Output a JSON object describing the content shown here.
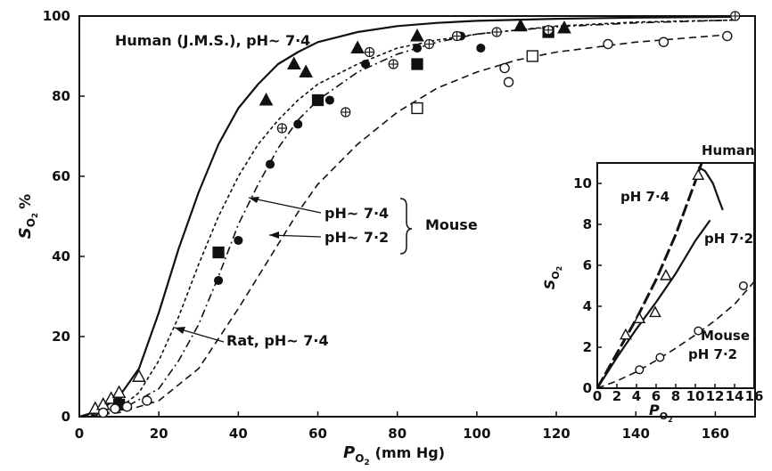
{
  "chart_data": [
    {
      "type": "scatter",
      "title": "",
      "xlabel": "P_O2 (mm Hg)",
      "xlabel_main": "P",
      "xlabel_sub": "O",
      "xlabel_subsub": "2",
      "xlabel_rest": "(mm Hg)",
      "ylabel": "S_O2 %",
      "ylabel_main": "S",
      "ylabel_sub": "O",
      "ylabel_subsub": "2",
      "ylabel_rest": "%",
      "xlim": [
        0,
        170
      ],
      "ylim": [
        0,
        100
      ],
      "xticks": [
        0,
        20,
        40,
        60,
        80,
        100,
        120,
        140,
        160
      ],
      "yticks": [
        0,
        20,
        40,
        60,
        80,
        100
      ],
      "grid": false,
      "annotations": {
        "human": "Human (J.M.S.), pH~ 7·4",
        "mouse_74": "pH~ 7·4",
        "mouse_72": "pH~ 7·2",
        "mouse": "Mouse",
        "rat": "Rat, pH~ 7·4"
      },
      "curves": [
        {
          "label_ref": "human",
          "style": "solid",
          "x": [
            0,
            5,
            10,
            15,
            20,
            25,
            30,
            35,
            40,
            45,
            50,
            55,
            60,
            70,
            80,
            90,
            100,
            120,
            140,
            165
          ],
          "y": [
            0,
            1.5,
            5,
            12,
            26,
            42,
            56,
            68,
            77,
            83,
            88,
            91,
            93.5,
            96,
            97.5,
            98.3,
            98.8,
            99.3,
            99.6,
            99.8
          ]
        },
        {
          "label_ref": "rat",
          "style": "dotted",
          "x": [
            0,
            10,
            15,
            20,
            25,
            30,
            35,
            40,
            45,
            50,
            55,
            60,
            70,
            80,
            90,
            100,
            120,
            140,
            165
          ],
          "y": [
            0,
            2,
            6,
            14,
            25,
            38,
            50,
            60,
            68,
            74,
            79,
            83,
            88,
            92,
            94,
            95.5,
            97.5,
            98.5,
            99
          ]
        },
        {
          "label_ref": "mouse_74",
          "style": "dash-dot",
          "x": [
            0,
            10,
            20,
            25,
            30,
            35,
            40,
            45,
            50,
            55,
            60,
            70,
            80,
            90,
            100,
            110,
            120,
            140,
            165
          ],
          "y": [
            0,
            1.5,
            7,
            14,
            23,
            35,
            48,
            58,
            67,
            74,
            79,
            86,
            90.5,
            93.5,
            95.5,
            96.5,
            97.3,
            98.3,
            99
          ]
        },
        {
          "label_ref": "mouse_72",
          "style": "dashed",
          "x": [
            0,
            10,
            20,
            30,
            40,
            50,
            55,
            60,
            70,
            80,
            90,
            100,
            110,
            120,
            140,
            165
          ],
          "y": [
            0,
            1,
            4,
            12,
            27,
            43,
            51,
            58,
            68,
            76,
            82,
            86,
            89,
            91,
            93.5,
            95.5
          ]
        }
      ],
      "series": [
        {
          "marker": "filled-triangle",
          "points": [
            [
              10,
              4
            ],
            [
              47,
              79
            ],
            [
              54,
              88
            ],
            [
              57,
              86
            ],
            [
              70,
              92
            ],
            [
              85,
              95
            ],
            [
              111,
              97.5
            ],
            [
              122,
              97
            ]
          ]
        },
        {
          "marker": "open-triangle",
          "points": [
            [
              4,
              2
            ],
            [
              6,
              3
            ],
            [
              8,
              4.5
            ],
            [
              10,
              6
            ],
            [
              15,
              10
            ]
          ]
        },
        {
          "marker": "filled-square",
          "points": [
            [
              10,
              3
            ],
            [
              35,
              41
            ],
            [
              60,
              79
            ],
            [
              85,
              88
            ],
            [
              118,
              96
            ]
          ]
        },
        {
          "marker": "open-square",
          "points": [
            [
              85,
              77
            ],
            [
              114,
              90
            ]
          ]
        },
        {
          "marker": "filled-circle",
          "points": [
            [
              35,
              34
            ],
            [
              40,
              44
            ],
            [
              48,
              63
            ],
            [
              55,
              73
            ],
            [
              63,
              79
            ],
            [
              72,
              88
            ],
            [
              85,
              92
            ],
            [
              96,
              95
            ],
            [
              101,
              92
            ]
          ]
        },
        {
          "marker": "open-circle",
          "points": [
            [
              6,
              1
            ],
            [
              9,
              2
            ],
            [
              12,
              2.5
            ],
            [
              17,
              4
            ],
            [
              107,
              87
            ],
            [
              108,
              83.5
            ],
            [
              133,
              93
            ],
            [
              147,
              93.5
            ],
            [
              163,
              95
            ]
          ]
        },
        {
          "marker": "crossed-circle",
          "points": [
            [
              51,
              72
            ],
            [
              67,
              76
            ],
            [
              73,
              91
            ],
            [
              79,
              88
            ],
            [
              88,
              93
            ],
            [
              95,
              95
            ],
            [
              105,
              96
            ],
            [
              118,
              96.5
            ],
            [
              165,
              100
            ]
          ]
        }
      ]
    },
    {
      "type": "scatter",
      "title": "",
      "xlabel": "P_O2",
      "xlabel_main": "P",
      "xlabel_sub": "O",
      "xlabel_subsub": "2",
      "ylabel": "S_O2",
      "ylabel_main": "S",
      "ylabel_sub": "O",
      "ylabel_subsub": "2",
      "xlim": [
        0,
        16
      ],
      "ylim": [
        0,
        11
      ],
      "xticks": [
        0,
        2,
        4,
        6,
        8,
        10,
        12,
        14,
        16
      ],
      "yticks": [
        0,
        2,
        4,
        6,
        8,
        10
      ],
      "grid": false,
      "annotations": {
        "human": "Human",
        "ph74": "pH  7·4",
        "ph72": "pH 7·2",
        "mouse": "Mouse",
        "mouse_ph": "pH   7·2"
      },
      "curves": [
        {
          "label_ref": "ph74",
          "style": "thick-dash",
          "x": [
            0,
            2,
            4,
            6,
            8,
            10,
            11
          ],
          "y": [
            0,
            1.7,
            3.4,
            5.3,
            7.5,
            10.1,
            11.5
          ]
        },
        {
          "label_ref": "ph72",
          "style": "solid",
          "x": [
            0,
            2,
            4,
            6,
            8,
            10,
            11.5
          ],
          "y": [
            0,
            1.5,
            2.9,
            4.2,
            5.6,
            7.2,
            8.2
          ]
        },
        {
          "label_ref": "mouse",
          "style": "dashed",
          "x": [
            0,
            2,
            4,
            6,
            8,
            10,
            12,
            14,
            16
          ],
          "y": [
            0,
            0.35,
            0.8,
            1.35,
            1.95,
            2.6,
            3.3,
            4.1,
            5.2
          ]
        },
        {
          "label_ref": "human",
          "style": "solid",
          "x": [
            10.3,
            11,
            11.8,
            12.4,
            12.8
          ],
          "y": [
            10.8,
            10.6,
            10.0,
            9.2,
            8.7
          ]
        }
      ],
      "series": [
        {
          "marker": "open-triangle",
          "points": [
            [
              2.9,
              2.6
            ],
            [
              4.3,
              3.4
            ],
            [
              5.9,
              3.7
            ],
            [
              7.0,
              5.5
            ],
            [
              10.3,
              10.4
            ]
          ]
        },
        {
          "marker": "open-circle",
          "points": [
            [
              4.3,
              0.9
            ],
            [
              6.4,
              1.5
            ],
            [
              10.3,
              2.8
            ],
            [
              14.9,
              5.0
            ]
          ]
        }
      ]
    }
  ]
}
